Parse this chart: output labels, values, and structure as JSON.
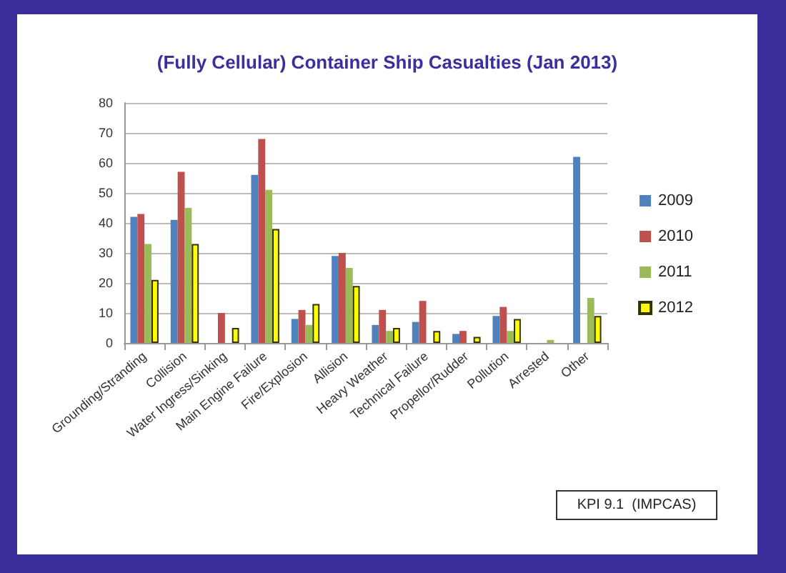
{
  "chart_data": {
    "type": "bar",
    "title": "(Fully Cellular) Container Ship Casualties (Jan 2013)",
    "categories": [
      "Grounding/Stranding",
      "Collision",
      "Water Ingress/Sinking",
      "Main Engine Failure",
      "Fire/Explosion",
      "Allision",
      "Heavy Weather",
      "Technical Failure",
      "Propellor/Rudder",
      "Pollution",
      "Arrested",
      "Other"
    ],
    "series": [
      {
        "name": "2009",
        "color": "#4f81bd",
        "values": [
          42,
          41,
          0,
          56,
          8,
          29,
          6,
          7,
          3,
          9,
          0,
          62
        ]
      },
      {
        "name": "2010",
        "color": "#c0504d",
        "values": [
          43,
          57,
          10,
          68,
          11,
          30,
          11,
          14,
          4,
          12,
          0,
          0
        ]
      },
      {
        "name": "2011",
        "color": "#9bbb59",
        "values": [
          33,
          45,
          0,
          51,
          6,
          25,
          4,
          0,
          0,
          4,
          1,
          15
        ]
      },
      {
        "name": "2012",
        "color": "#ffff00",
        "values": [
          21,
          33,
          5,
          38,
          13,
          19,
          5,
          4,
          2,
          8,
          0,
          9
        ]
      }
    ],
    "ylim": [
      0,
      80
    ],
    "yticks": [
      0,
      10,
      20,
      30,
      40,
      50,
      60,
      70,
      80
    ],
    "grid": "y",
    "legend": "right",
    "annotations": [
      "KPI 9.1  (IMPCAS)"
    ]
  }
}
